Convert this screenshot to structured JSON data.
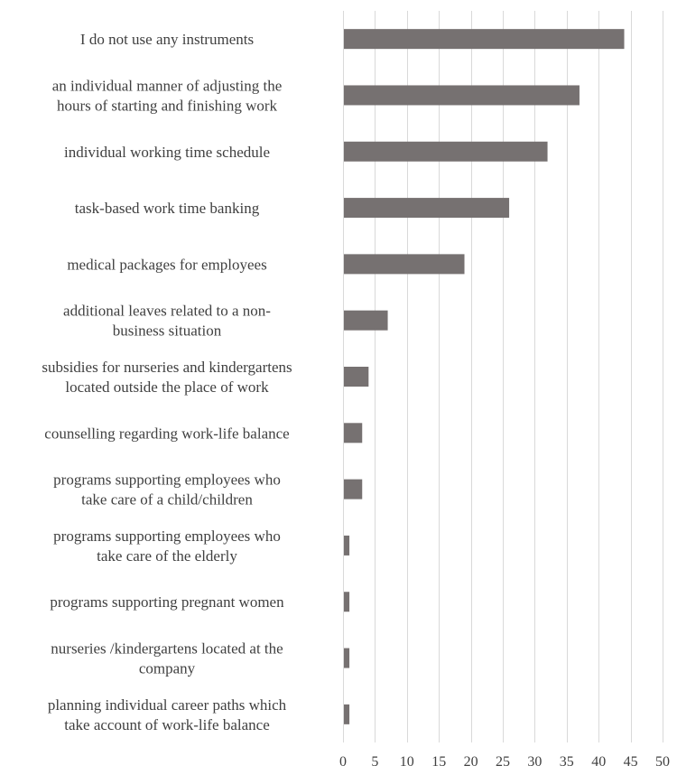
{
  "chart_data": {
    "type": "bar",
    "orientation": "horizontal",
    "categories": [
      [
        "I do not use any instruments"
      ],
      [
        "an individual manner of adjusting the",
        "hours of starting and finishing work"
      ],
      [
        "individual working time schedule"
      ],
      [
        "task-based work time banking"
      ],
      [
        "medical packages for employees"
      ],
      [
        "additional leaves related to a non-",
        "business situation"
      ],
      [
        "subsidies for nurseries and kindergartens",
        "located outside the place of work"
      ],
      [
        "counselling regarding work-life balance"
      ],
      [
        "programs supporting employees who",
        "take care of a child/children"
      ],
      [
        "programs supporting employees who",
        "take care of the elderly"
      ],
      [
        "programs supporting pregnant women"
      ],
      [
        "nurseries /kindergartens located at the",
        "company"
      ],
      [
        "planning individual career paths which",
        "take account of work-life balance"
      ]
    ],
    "values": [
      44,
      37,
      32,
      26,
      19,
      7,
      4,
      3,
      3,
      1,
      1,
      1,
      1
    ],
    "xlim": [
      0,
      50
    ],
    "xticks": [
      0,
      5,
      10,
      15,
      20,
      25,
      30,
      35,
      40,
      45,
      50
    ],
    "title": "",
    "xlabel": "",
    "ylabel": "",
    "grid": "vertical",
    "bar_color": "#767171",
    "grid_color": "#d9d9d9",
    "text_color": "#404040"
  }
}
